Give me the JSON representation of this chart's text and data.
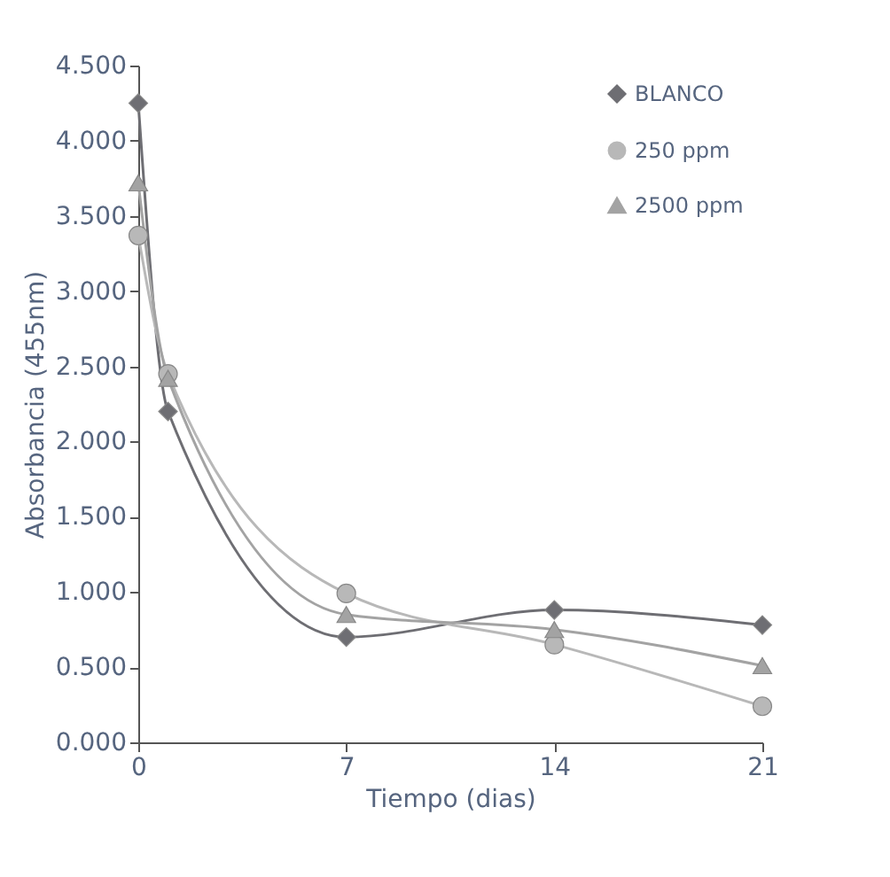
{
  "chart_data": {
    "type": "line",
    "xlabel": "Tiempo (dias)",
    "ylabel": "Absorbancia (455nm)",
    "x": [
      0,
      1,
      7,
      14,
      21
    ],
    "series": [
      {
        "name": "BLANCO",
        "color": "#6e6e73",
        "marker": "diamond",
        "values": [
          4.25,
          2.2,
          0.7,
          0.88,
          0.78
        ]
      },
      {
        "name": "250 ppm",
        "color": "#b8b8b8",
        "marker": "circle",
        "values": [
          3.37,
          2.45,
          0.99,
          0.65,
          0.24
        ]
      },
      {
        "name": "2500 ppm",
        "color": "#a3a3a3",
        "marker": "triangle",
        "values": [
          3.72,
          2.42,
          0.85,
          0.75,
          0.51
        ]
      }
    ],
    "xlim": [
      0,
      21
    ],
    "xticks": [
      0,
      7,
      14,
      21
    ],
    "ylim": [
      0,
      4.5
    ],
    "yticks": [
      {
        "value": 0,
        "label": "0.000"
      },
      {
        "value": 0.5,
        "label": "0.500"
      },
      {
        "value": 1,
        "label": "1.000"
      },
      {
        "value": 1.5,
        "label": "1.500"
      },
      {
        "value": 2,
        "label": "2.000"
      },
      {
        "value": 2.5,
        "label": "2.500"
      },
      {
        "value": 3,
        "label": "3.000"
      },
      {
        "value": 3.5,
        "label": "3.500"
      },
      {
        "value": 4,
        "label": "4.000"
      },
      {
        "value": 4.5,
        "label": "4.500"
      }
    ],
    "grid": false,
    "legend": "top right",
    "line_style": "solid"
  }
}
